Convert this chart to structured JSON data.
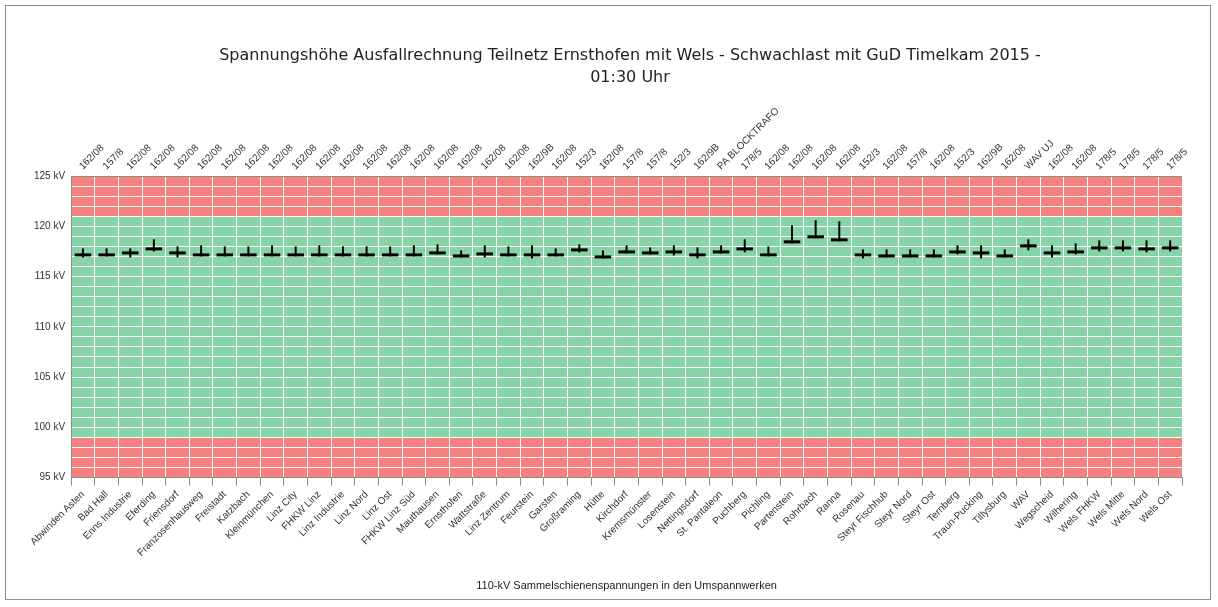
{
  "chart_data": {
    "type": "candlestick",
    "title": "Spannungshöhe Ausfallrechnung Teilnetz Ernsthofen mit Wels - Schwachlast mit GuD Timelkam 2015 - 01:30 Uhr",
    "xlabel": "110-kV Sammelschienenspannungen in den Umspannwerken",
    "categories": [
      "Abwinden Asten",
      "Bad Hall",
      "Enns Industrie",
      "Eferding",
      "Friensdorf",
      "Franzosenhausweg",
      "Freistadt",
      "Katzbach",
      "Kleinmünchen",
      "Linz City",
      "FHKW Linz",
      "Linz Industrie",
      "Linz Nord",
      "Linz Ost",
      "FHKW Linz Süd",
      "Mauthausen",
      "Ernsthofen",
      "Wattstraße",
      "Linz Zentrum",
      "Feurstein",
      "Garsten",
      "Großraming",
      "Hütte",
      "Kirchdorf",
      "Kremsmünster",
      "Losenstein",
      "Nettingsdorf",
      "St. Pantaleon",
      "Puchberg",
      "Pichling",
      "Partenstein",
      "Rohrbach",
      "Ranna",
      "Rosenau",
      "Steyr Fischhub",
      "Steyr Nord",
      "Steyr Ost",
      "Ternberg",
      "Traun-Pucking",
      "Tillysburg",
      "WAV",
      "Wegscheid",
      "Wilhering",
      "Wels FHKW",
      "Wels Mitte",
      "Wels Nord",
      "Wels Ost"
    ],
    "color": "#000000",
    "ohlc": [
      [
        117.3,
        117.8,
        116.9,
        117.0
      ],
      [
        117.3,
        117.8,
        117.0,
        117.0
      ],
      [
        117.5,
        117.8,
        116.9,
        117.2
      ],
      [
        117.9,
        118.7,
        117.5,
        117.6
      ],
      [
        117.5,
        118.0,
        116.9,
        117.2
      ],
      [
        117.3,
        118.1,
        117.0,
        117.0
      ],
      [
        117.3,
        118.0,
        117.0,
        117.0
      ],
      [
        117.3,
        118.0,
        117.0,
        117.0
      ],
      [
        117.3,
        118.1,
        117.0,
        117.0
      ],
      [
        117.3,
        118.0,
        117.0,
        117.0
      ],
      [
        117.3,
        118.1,
        117.0,
        117.0
      ],
      [
        117.3,
        118.0,
        117.0,
        117.0
      ],
      [
        117.3,
        118.0,
        117.0,
        117.0
      ],
      [
        117.3,
        118.0,
        117.0,
        117.0
      ],
      [
        117.3,
        118.1,
        117.0,
        117.0
      ],
      [
        117.5,
        118.2,
        117.2,
        117.2
      ],
      [
        117.2,
        117.6,
        116.9,
        116.9
      ],
      [
        117.4,
        118.1,
        116.9,
        117.1
      ],
      [
        117.3,
        118.0,
        117.0,
        117.0
      ],
      [
        117.3,
        118.1,
        116.8,
        117.0
      ],
      [
        117.3,
        117.8,
        117.0,
        117.0
      ],
      [
        117.8,
        118.2,
        117.4,
        117.5
      ],
      [
        117.1,
        117.6,
        116.8,
        116.8
      ],
      [
        117.6,
        118.1,
        117.3,
        117.3
      ],
      [
        117.5,
        117.9,
        117.2,
        117.2
      ],
      [
        117.6,
        118.1,
        117.1,
        117.3
      ],
      [
        117.3,
        117.9,
        116.8,
        117.0
      ],
      [
        117.6,
        118.1,
        117.3,
        117.3
      ],
      [
        117.9,
        118.7,
        117.4,
        117.6
      ],
      [
        117.3,
        118.0,
        117.0,
        117.0
      ],
      [
        118.6,
        120.1,
        118.3,
        118.3
      ],
      [
        119.1,
        120.6,
        118.8,
        118.8
      ],
      [
        118.8,
        120.5,
        118.5,
        118.5
      ],
      [
        117.3,
        117.7,
        116.8,
        117.0
      ],
      [
        117.2,
        117.7,
        116.9,
        116.9
      ],
      [
        117.2,
        117.7,
        116.9,
        116.9
      ],
      [
        117.2,
        117.7,
        116.9,
        116.9
      ],
      [
        117.6,
        118.1,
        117.2,
        117.3
      ],
      [
        117.5,
        118.1,
        116.8,
        117.2
      ],
      [
        117.2,
        117.7,
        116.9,
        116.9
      ],
      [
        118.2,
        118.7,
        117.6,
        117.9
      ],
      [
        117.5,
        118.1,
        116.9,
        117.2
      ],
      [
        117.6,
        118.3,
        117.2,
        117.3
      ],
      [
        118.0,
        118.6,
        117.5,
        117.7
      ],
      [
        118.0,
        118.6,
        117.5,
        117.7
      ],
      [
        117.9,
        118.6,
        117.4,
        117.6
      ],
      [
        118.0,
        118.6,
        117.5,
        117.7
      ]
    ],
    "ylim": [
      95,
      125
    ],
    "yticks": [
      {
        "value": 95,
        "label": "95 kV"
      },
      {
        "value": 96,
        "label": null
      },
      {
        "value": 97,
        "label": null
      },
      {
        "value": 98,
        "label": null
      },
      {
        "value": 99,
        "label": null
      },
      {
        "value": 100,
        "label": "100 kV"
      },
      {
        "value": 101,
        "label": null
      },
      {
        "value": 102,
        "label": null
      },
      {
        "value": 103,
        "label": null
      },
      {
        "value": 104,
        "label": null
      },
      {
        "value": 105,
        "label": "105 kV"
      },
      {
        "value": 106,
        "label": null
      },
      {
        "value": 107,
        "label": null
      },
      {
        "value": 108,
        "label": null
      },
      {
        "value": 109,
        "label": null
      },
      {
        "value": 110,
        "label": "110 kV"
      },
      {
        "value": 111,
        "label": null
      },
      {
        "value": 112,
        "label": null
      },
      {
        "value": 113,
        "label": null
      },
      {
        "value": 114,
        "label": null
      },
      {
        "value": 115,
        "label": "115 kV"
      },
      {
        "value": 116,
        "label": null
      },
      {
        "value": 117,
        "label": null
      },
      {
        "value": 118,
        "label": null
      },
      {
        "value": 119,
        "label": null
      },
      {
        "value": 120,
        "label": "120 kV"
      },
      {
        "value": 121,
        "label": null
      },
      {
        "value": 122,
        "label": null
      },
      {
        "value": 123,
        "label": null
      },
      {
        "value": 124,
        "label": null
      },
      {
        "value": 125,
        "label": "125 kV"
      }
    ],
    "grid": true,
    "bands": [
      {
        "axis": "y",
        "from": 121,
        "to": 125,
        "color": "#f5807f"
      },
      {
        "axis": "y",
        "from": 99,
        "to": 121,
        "color": "#88d4a9"
      },
      {
        "axis": "y",
        "from": 95,
        "to": 99,
        "color": "#f5807f"
      }
    ],
    "annotations": [
      "162/08",
      "157/8",
      "162/08",
      "162/08",
      "162/08",
      "162/08",
      "162/08",
      "162/08",
      "162/08",
      "162/08",
      "162/08",
      "162/08",
      "162/08",
      "162/08",
      "162/08",
      "162/08",
      "162/08",
      "162/08",
      "162/08",
      "162/9B",
      "162/08",
      "152/3",
      "162/08",
      "157/8",
      "157/8",
      "152/3",
      "162/9B",
      "PA BLOCKTRAFO",
      "178/5",
      "162/08",
      "162/08",
      "162/08",
      "162/08",
      "152/3",
      "162/08",
      "157/8",
      "162/08",
      "152/3",
      "162/9B",
      "162/08",
      "WAV UJ",
      "162/08",
      "162/08",
      "178/5",
      "178/5",
      "178/5",
      "178/5"
    ]
  }
}
